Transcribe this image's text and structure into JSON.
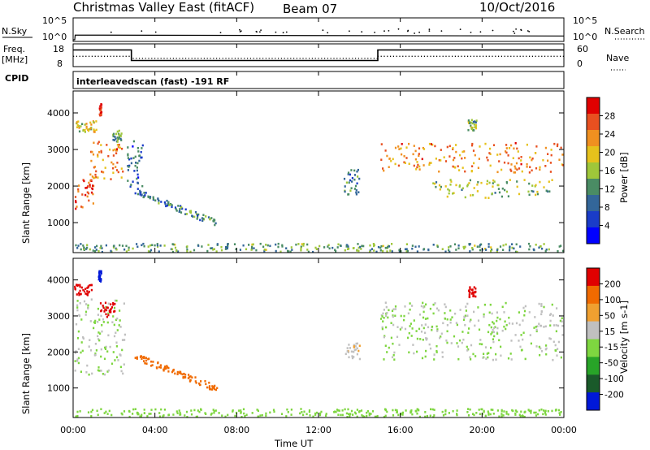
{
  "header": {
    "station": "Christmas Valley East (fitACF)",
    "beam": "Beam 07",
    "date": "10/Oct/2016",
    "scan_mode": "interleavedscan (fast) -191 RF"
  },
  "summary_panel": {
    "nsky_label": "N.Sky",
    "nsearch_label": "N.Search",
    "nsky_ticks": [
      "10^5",
      "10^0"
    ],
    "freq_label": [
      "Freq.",
      "[MHz]"
    ],
    "freq_ticks": [
      "18",
      "8"
    ],
    "nave_label": "Nave",
    "nave_ticks": [
      "60",
      "0"
    ],
    "cpid_label": "CPID"
  },
  "axes": {
    "ylabel": "Slant Range [km]",
    "yticks": [
      "4000",
      "3000",
      "2000",
      "1000"
    ],
    "xticks": [
      "00:00",
      "04:00",
      "08:00",
      "12:00",
      "16:00",
      "20:00",
      "00:00"
    ],
    "xlabel": "Time UT"
  },
  "chart_data": [
    {
      "type": "line",
      "title": "N.Sky / N.Search",
      "x_units": "hours UT",
      "xlim": [
        0,
        24
      ],
      "y_scale": "log",
      "ylim": [
        1,
        100000
      ],
      "series": [
        {
          "name": "N.Sky",
          "style": "solid",
          "x": [
            0,
            0.08,
            0.1,
            24
          ],
          "y": [
            1,
            1,
            10,
            10
          ]
        },
        {
          "name": "N.Search",
          "style": "dotted",
          "x": [
            20,
            24
          ],
          "y": [
            30,
            30
          ]
        }
      ]
    },
    {
      "type": "line",
      "title": "Freq. [MHz] / Nave",
      "x_units": "hours UT",
      "xlim": [
        0,
        24
      ],
      "freq_ylim": [
        8,
        18
      ],
      "nave_ylim": [
        0,
        60
      ],
      "series": [
        {
          "name": "Freq.",
          "axis": "left",
          "style": "solid",
          "x": [
            0,
            2.85,
            2.85,
            14.9,
            14.9,
            24
          ],
          "y": [
            15.5,
            15.5,
            10.5,
            10.5,
            15.5,
            15.5
          ]
        },
        {
          "name": "Nave",
          "axis": "right",
          "style": "dotted",
          "x": [
            0,
            2.85,
            2.85,
            14.9,
            14.9,
            24
          ],
          "y": [
            27,
            27,
            21,
            21,
            27,
            27
          ]
        }
      ]
    },
    {
      "type": "heatmap",
      "title": "Power",
      "x_units": "hours UT",
      "xlim": [
        0,
        24
      ],
      "ylim": [
        180,
        4600
      ],
      "colorbar": {
        "label": "Power [dB]",
        "ticks": [
          "28",
          "24",
          "20",
          "16",
          "12",
          "8",
          "4"
        ],
        "range": [
          0,
          30
        ],
        "colors": [
          "#0000ff",
          "#1a3cc8",
          "#336699",
          "#4a8c64",
          "#9fc73a",
          "#e6c21c",
          "#f09020",
          "#e85020",
          "#e00000"
        ]
      },
      "regions": [
        {
          "t": [
            0,
            1.1
          ],
          "r": [
            3500,
            3800
          ],
          "v": 18
        },
        {
          "t": [
            0,
            1.0
          ],
          "r": [
            1400,
            2200
          ],
          "v": 26
        },
        {
          "t": [
            0.8,
            2.4
          ],
          "r": [
            2200,
            3300
          ],
          "v": 22
        },
        {
          "t": [
            1.9,
            2.4
          ],
          "r": [
            3200,
            3600
          ],
          "v": 12
        },
        {
          "t": [
            1.25,
            1.35
          ],
          "r": [
            3950,
            4300
          ],
          "v": 27
        },
        {
          "t": [
            3.0,
            7.0
          ],
          "r": [
            1000,
            1900
          ],
          "v": 10,
          "shape": "diagonal"
        },
        {
          "t": [
            2.6,
            3.4
          ],
          "r": [
            2000,
            3300
          ],
          "v": 8
        },
        {
          "t": [
            15.0,
            24.0
          ],
          "r": [
            2400,
            3200
          ],
          "v": 22
        },
        {
          "t": [
            17.5,
            23.5
          ],
          "r": [
            1700,
            2200
          ],
          "v": 14
        },
        {
          "t": [
            13.2,
            14.0
          ],
          "r": [
            1800,
            2500
          ],
          "v": 10
        },
        {
          "t": [
            19.2,
            19.7
          ],
          "r": [
            3550,
            3850
          ],
          "v": 14
        },
        {
          "t": [
            0,
            24
          ],
          "r": [
            200,
            450
          ],
          "v": 12
        }
      ]
    },
    {
      "type": "heatmap",
      "title": "Velocity",
      "x_units": "hours UT",
      "xlim": [
        0,
        24
      ],
      "ylim": [
        180,
        4600
      ],
      "colorbar": {
        "label": "Velocity [m s-1]",
        "ticks": [
          "200",
          "100",
          "50",
          "15",
          "-15",
          "-50",
          "-100",
          "-200"
        ],
        "range": [
          -250,
          250
        ],
        "colors": [
          "#0018d8",
          "#1a5a2a",
          "#28a428",
          "#7ed640",
          "#c0c0c0",
          "#f0a030",
          "#f06a00",
          "#e00000"
        ]
      },
      "regions": [
        {
          "t": [
            0,
            0.9
          ],
          "r": [
            3600,
            3900
          ],
          "v": 220
        },
        {
          "t": [
            1.2,
            1.35
          ],
          "r": [
            3950,
            4300
          ],
          "v": -220
        },
        {
          "t": [
            0,
            2.5
          ],
          "r": [
            1400,
            3500
          ],
          "v": 0
        },
        {
          "t": [
            1.3,
            2.0
          ],
          "r": [
            3000,
            3400
          ],
          "v": 220
        },
        {
          "t": [
            3.0,
            7.0
          ],
          "r": [
            1000,
            1900
          ],
          "v": 150,
          "shape": "diagonal"
        },
        {
          "t": [
            15.0,
            24.0
          ],
          "r": [
            1800,
            3400
          ],
          "v": 0
        },
        {
          "t": [
            13.3,
            14.0
          ],
          "r": [
            1800,
            2300
          ],
          "v": 60
        },
        {
          "t": [
            19.3,
            19.7
          ],
          "r": [
            3550,
            3850
          ],
          "v": 220
        },
        {
          "t": [
            0,
            24
          ],
          "r": [
            200,
            450
          ],
          "v": -30
        }
      ]
    }
  ]
}
